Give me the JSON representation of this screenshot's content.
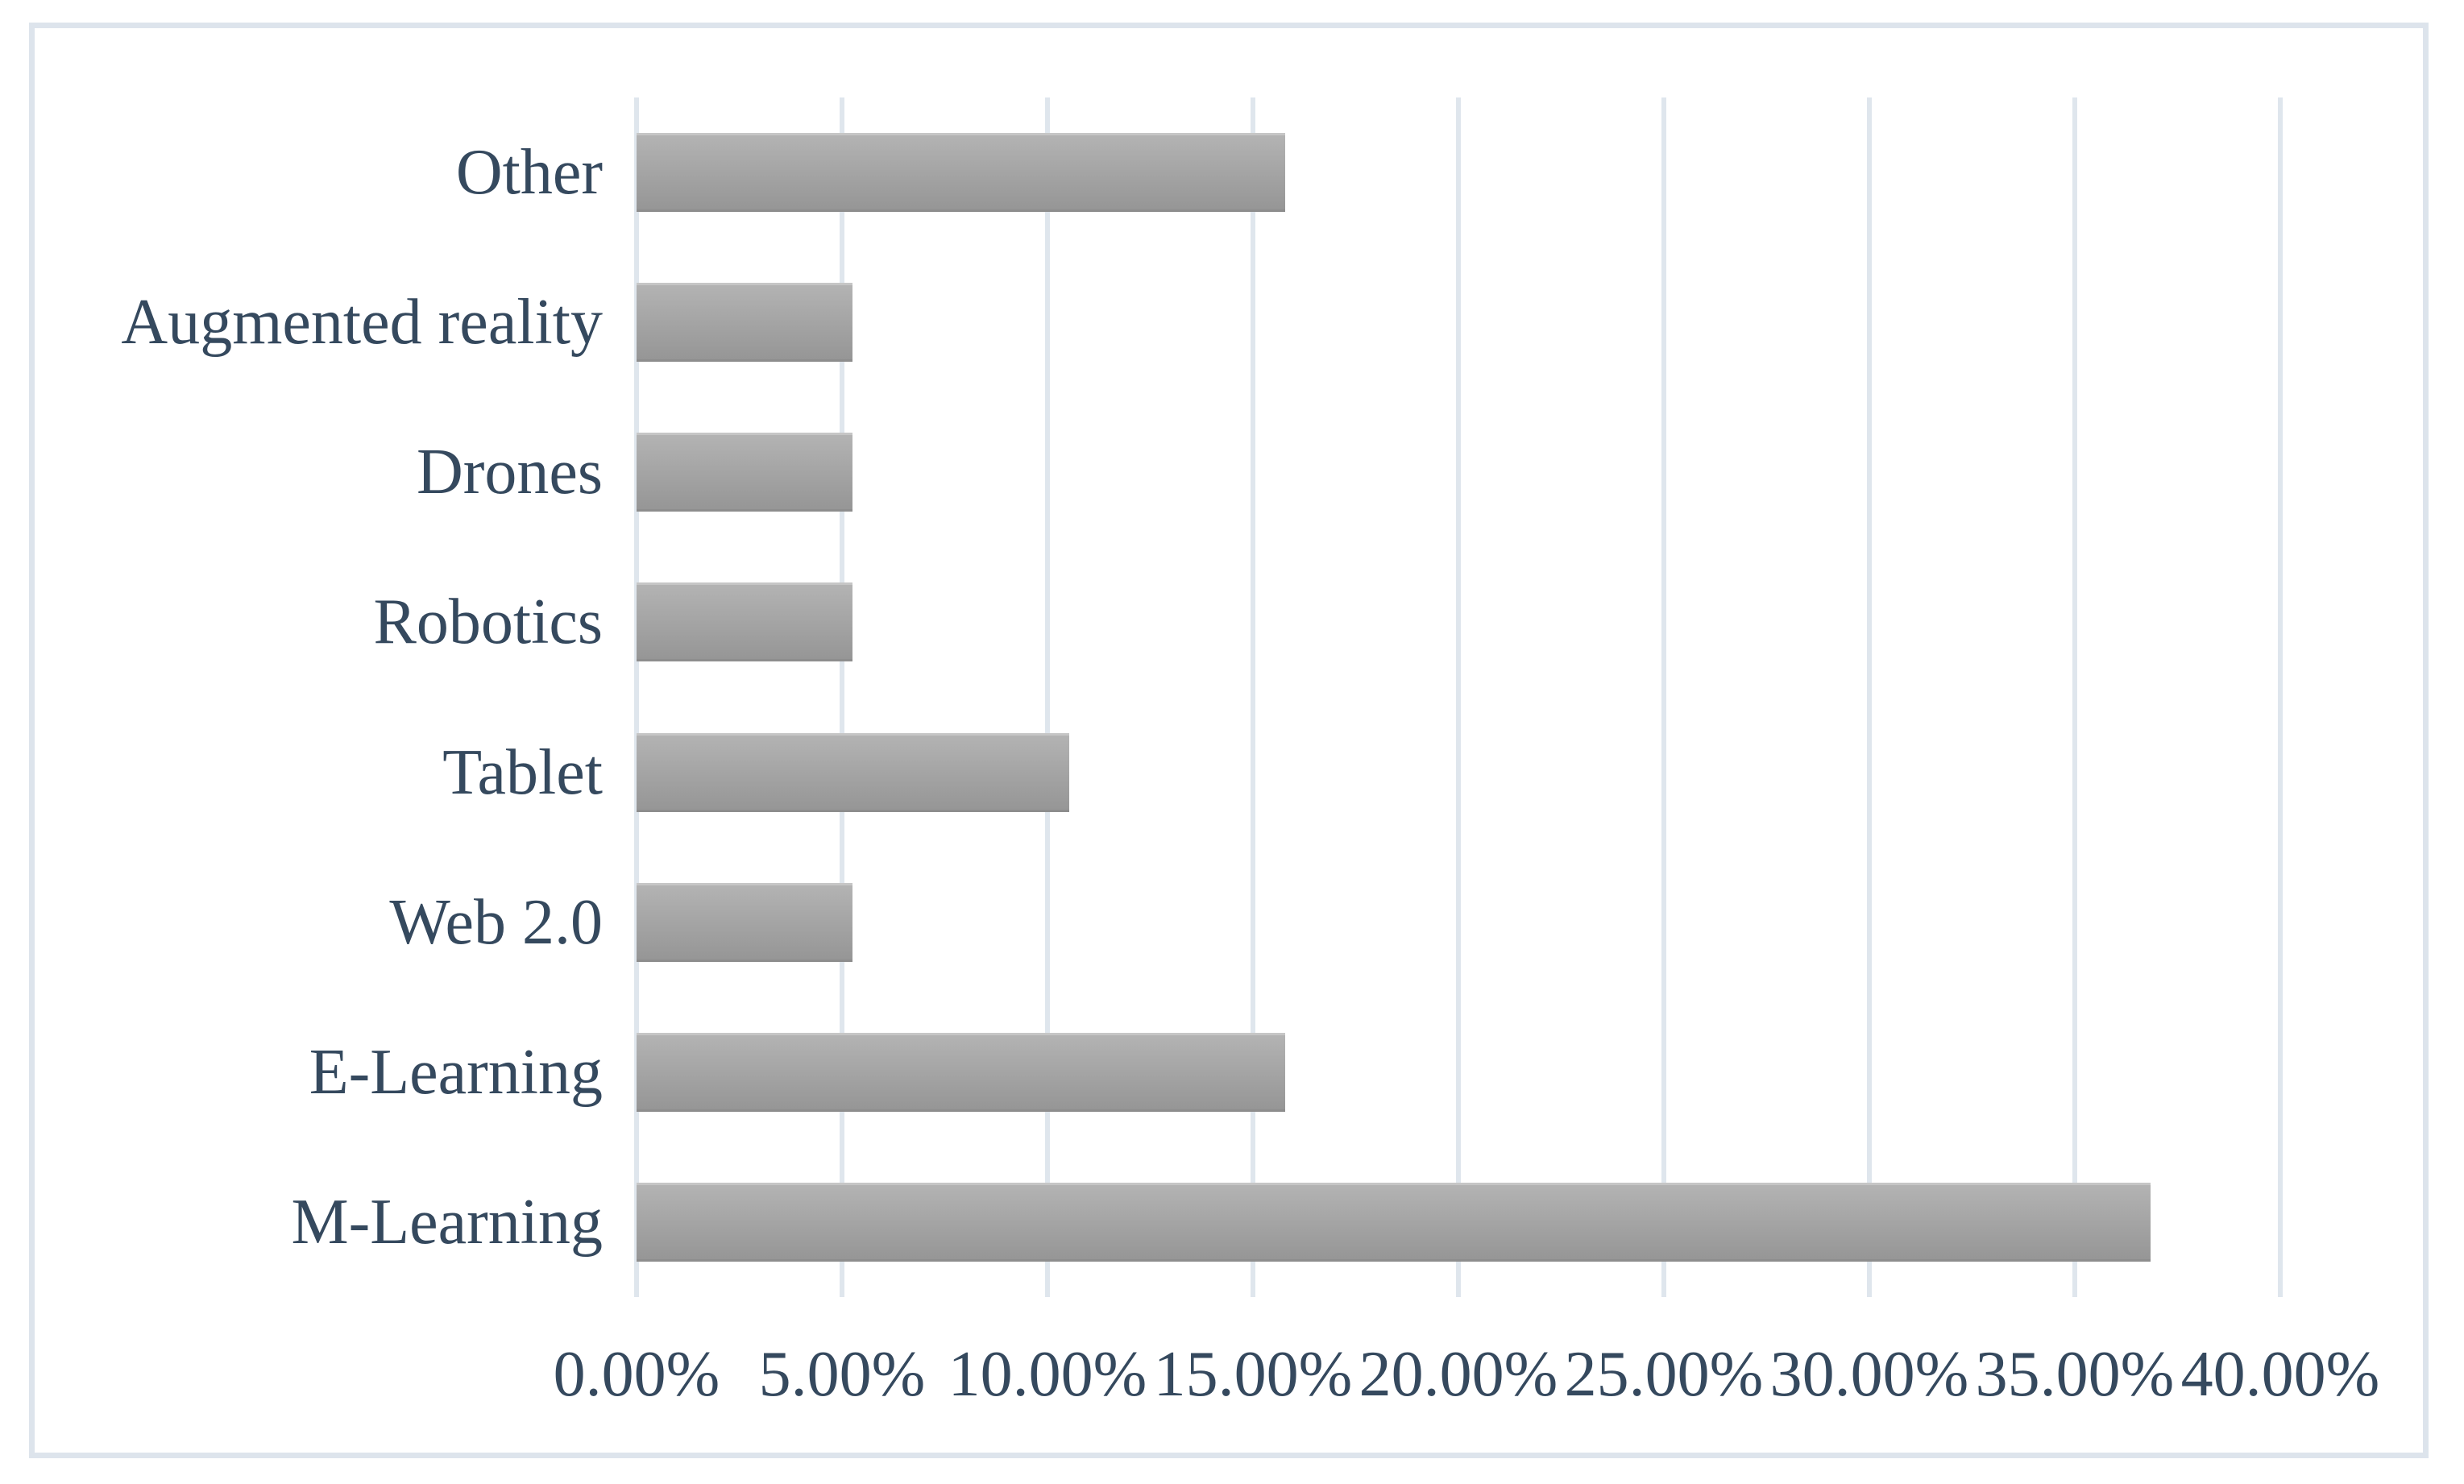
{
  "figure": {
    "background_color": "#ffffff",
    "frame_border_color": "#dde4ec"
  },
  "chart_data": {
    "type": "bar",
    "orientation": "horizontal",
    "title": "",
    "xlabel": "",
    "ylabel": "",
    "categories": [
      "Other",
      "Augmented reality",
      "Drones",
      "Robotics",
      "Tablet",
      "Web 2.0",
      "E-Learning",
      "M-Learning"
    ],
    "values": [
      15.79,
      5.26,
      5.26,
      5.26,
      10.53,
      5.26,
      15.79,
      36.84
    ],
    "x_ticks": [
      "0.00%",
      "5.00%",
      "10.00%",
      "15.00%",
      "20.00%",
      "25.00%",
      "30.00%",
      "35.00%",
      "40.00%"
    ],
    "x_tick_values": [
      0,
      5,
      10,
      15,
      20,
      25,
      30,
      35,
      40
    ],
    "xlim": [
      0,
      40
    ],
    "grid": "vertical-only",
    "legend": "none",
    "colors": {
      "bar_top": "#b3b3b3",
      "bar_bottom": "#969696",
      "gridline": "#dfe6ed",
      "label_text": "#35495e",
      "frame_border": "#dde4ec"
    }
  }
}
